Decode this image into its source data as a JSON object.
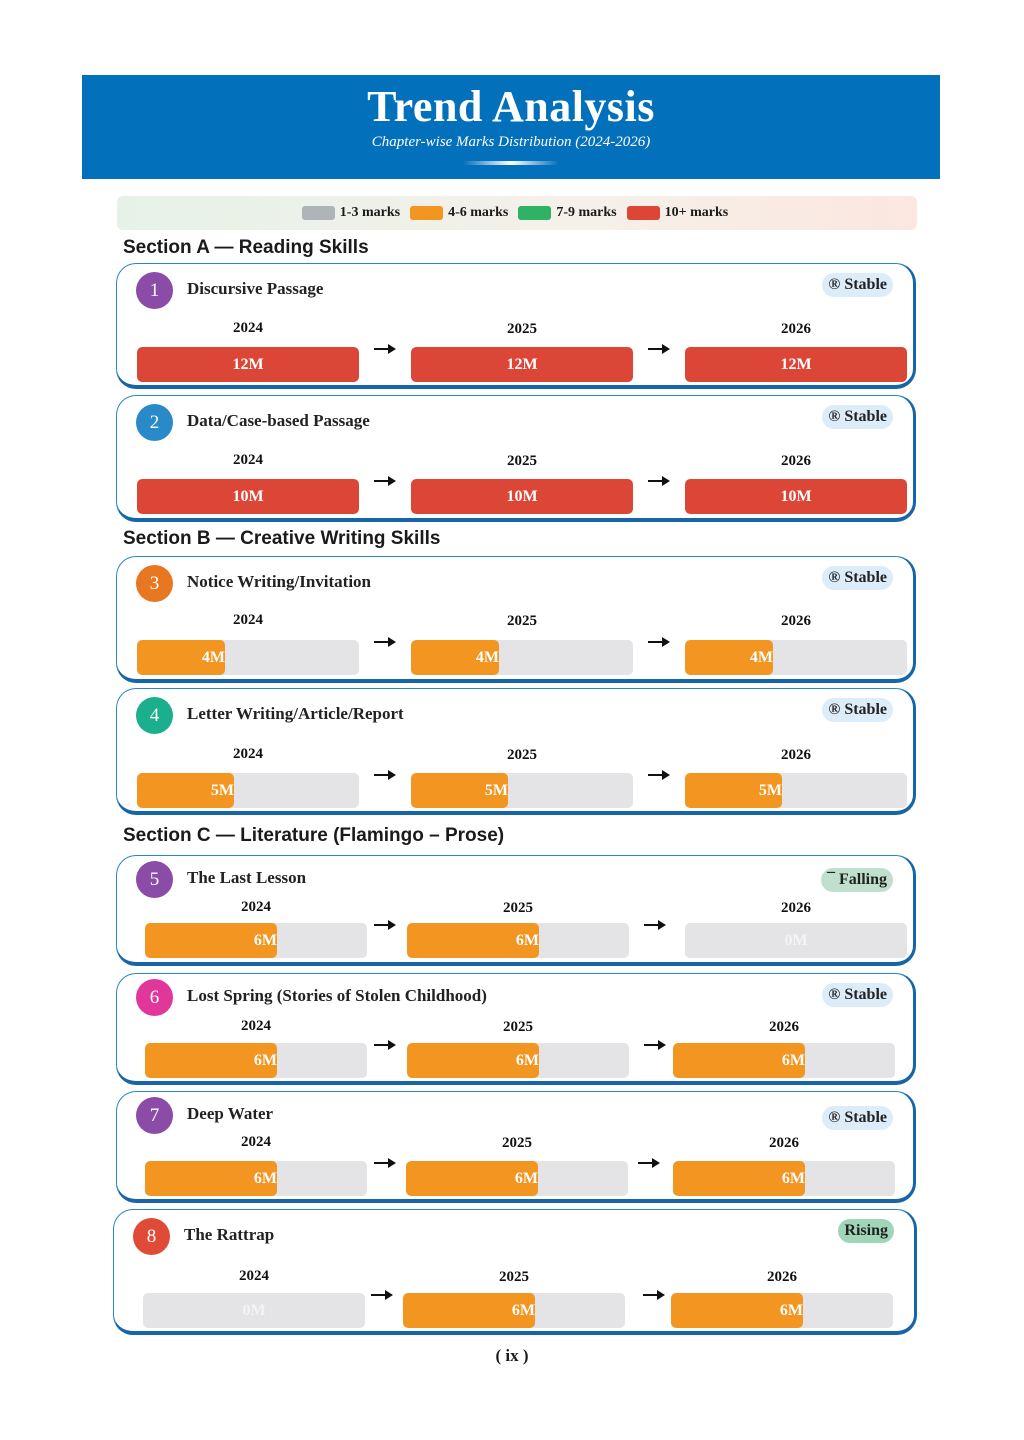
{
  "header": {
    "title": "Trend Analysis",
    "subtitle": "Chapter-wise Marks Distribution (2024-2026)"
  },
  "legend": [
    {
      "label": "1-3 marks",
      "color": "#AEB4B8"
    },
    {
      "label": "4-6 marks",
      "color": "#F39521"
    },
    {
      "label": "7-9 marks",
      "color": "#2EB266"
    },
    {
      "label": "10+ marks",
      "color": "#DC4637"
    }
  ],
  "colors": {
    "accent": "#0270BA",
    "red": "#DC4637",
    "orange": "#F39521",
    "track": "#E4E4E6"
  },
  "max_marks": 12,
  "sections": [
    {
      "title": "Section A — Reading Skills"
    },
    {
      "title": "Section B — Creative Writing Skills"
    },
    {
      "title": "Section C — Literature (Flamingo – Prose)"
    }
  ],
  "chapters": [
    {
      "num": "1",
      "name": "Discursive Passage",
      "trend": "® Stable",
      "trend_type": "stable",
      "circle_color": "#8B4CA8",
      "years": [
        {
          "year": "2024",
          "marks": 12,
          "label": "12M"
        },
        {
          "year": "2025",
          "marks": 12,
          "label": "12M"
        },
        {
          "year": "2026",
          "marks": 12,
          "label": "12M"
        }
      ]
    },
    {
      "num": "2",
      "name": "Data/Case-based Passage",
      "trend": "® Stable",
      "trend_type": "stable",
      "circle_color": "#2A8AC9",
      "years": [
        {
          "year": "2024",
          "marks": 10,
          "label": "10M"
        },
        {
          "year": "2025",
          "marks": 10,
          "label": "10M"
        },
        {
          "year": "2026",
          "marks": 10,
          "label": "10M"
        }
      ]
    },
    {
      "num": "3",
      "name": "Notice Writing/Invitation",
      "trend": "® Stable",
      "trend_type": "stable",
      "circle_color": "#E87722",
      "years": [
        {
          "year": "2024",
          "marks": 4,
          "label": "4M"
        },
        {
          "year": "2025",
          "marks": 4,
          "label": "4M"
        },
        {
          "year": "2026",
          "marks": 4,
          "label": "4M"
        }
      ]
    },
    {
      "num": "4",
      "name": "Letter Writing/Article/Report",
      "trend": "® Stable",
      "trend_type": "stable",
      "circle_color": "#1BAF8E",
      "years": [
        {
          "year": "2024",
          "marks": 5,
          "label": "5M"
        },
        {
          "year": "2025",
          "marks": 5,
          "label": "5M"
        },
        {
          "year": "2026",
          "marks": 5,
          "label": "5M"
        }
      ]
    },
    {
      "num": "5",
      "name": "The Last Lesson",
      "trend": "¯ Falling",
      "trend_type": "falling",
      "circle_color": "#8B4CA8",
      "years": [
        {
          "year": "2024",
          "marks": 6,
          "label": "6M"
        },
        {
          "year": "2025",
          "marks": 6,
          "label": "6M"
        },
        {
          "year": "2026",
          "marks": 0,
          "label": "0M"
        }
      ]
    },
    {
      "num": "6",
      "name": "Lost Spring (Stories of Stolen Childhood)",
      "trend": "® Stable",
      "trend_type": "stable",
      "circle_color": "#E2379A",
      "years": [
        {
          "year": "2024",
          "marks": 6,
          "label": "6M"
        },
        {
          "year": "2025",
          "marks": 6,
          "label": "6M"
        },
        {
          "year": "2026",
          "marks": 6,
          "label": "6M"
        }
      ]
    },
    {
      "num": "7",
      "name": "Deep Water",
      "trend": "® Stable",
      "trend_type": "stable",
      "circle_color": "#8B4CA8",
      "years": [
        {
          "year": "2024",
          "marks": 6,
          "label": "6M"
        },
        {
          "year": "2025",
          "marks": 6,
          "label": "6M"
        },
        {
          "year": "2026",
          "marks": 6,
          "label": "6M"
        }
      ]
    },
    {
      "num": "8",
      "name": "The Rattrap",
      "trend": "Rising",
      "trend_type": "rising",
      "circle_color": "#E04B38",
      "years": [
        {
          "year": "2024",
          "marks": 0,
          "label": "0M"
        },
        {
          "year": "2025",
          "marks": 6,
          "label": "6M"
        },
        {
          "year": "2026",
          "marks": 6,
          "label": "6M"
        }
      ]
    }
  ],
  "footer": {
    "page_number": "( ix )"
  }
}
